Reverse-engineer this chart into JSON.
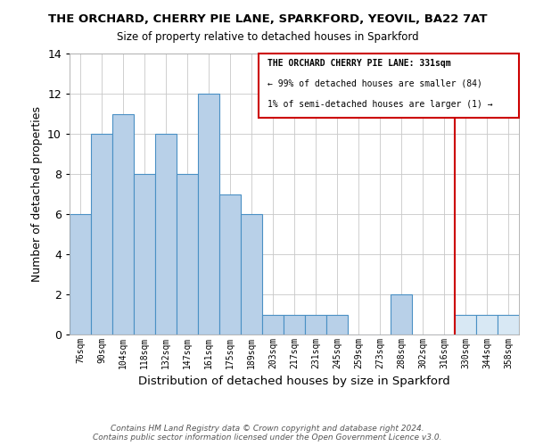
{
  "title": "THE ORCHARD, CHERRY PIE LANE, SPARKFORD, YEOVIL, BA22 7AT",
  "subtitle": "Size of property relative to detached houses in Sparkford",
  "xlabel": "Distribution of detached houses by size in Sparkford",
  "ylabel": "Number of detached properties",
  "bar_labels": [
    "76sqm",
    "90sqm",
    "104sqm",
    "118sqm",
    "132sqm",
    "147sqm",
    "161sqm",
    "175sqm",
    "189sqm",
    "203sqm",
    "217sqm",
    "231sqm",
    "245sqm",
    "259sqm",
    "273sqm",
    "288sqm",
    "302sqm",
    "316sqm",
    "330sqm",
    "344sqm",
    "358sqm"
  ],
  "bar_heights": [
    6,
    10,
    11,
    8,
    10,
    8,
    12,
    7,
    6,
    1,
    1,
    1,
    1,
    0,
    0,
    2,
    0,
    0,
    1,
    1,
    1
  ],
  "bar_color": "#b8d0e8",
  "bar_edge_color": "#4a90c4",
  "highlight_line_color": "#cc0000",
  "highlight_line_index": 18,
  "highlight_bar_color": "#d8e8f4",
  "ylim": [
    0,
    14
  ],
  "yticks": [
    0,
    2,
    4,
    6,
    8,
    10,
    12,
    14
  ],
  "legend_title": "THE ORCHARD CHERRY PIE LANE: 331sqm",
  "legend_line1": "← 99% of detached houses are smaller (84)",
  "legend_line2": "1% of semi-detached houses are larger (1) →",
  "legend_box_edge": "#cc0000",
  "footer_line1": "Contains HM Land Registry data © Crown copyright and database right 2024.",
  "footer_line2": "Contains public sector information licensed under the Open Government Licence v3.0."
}
